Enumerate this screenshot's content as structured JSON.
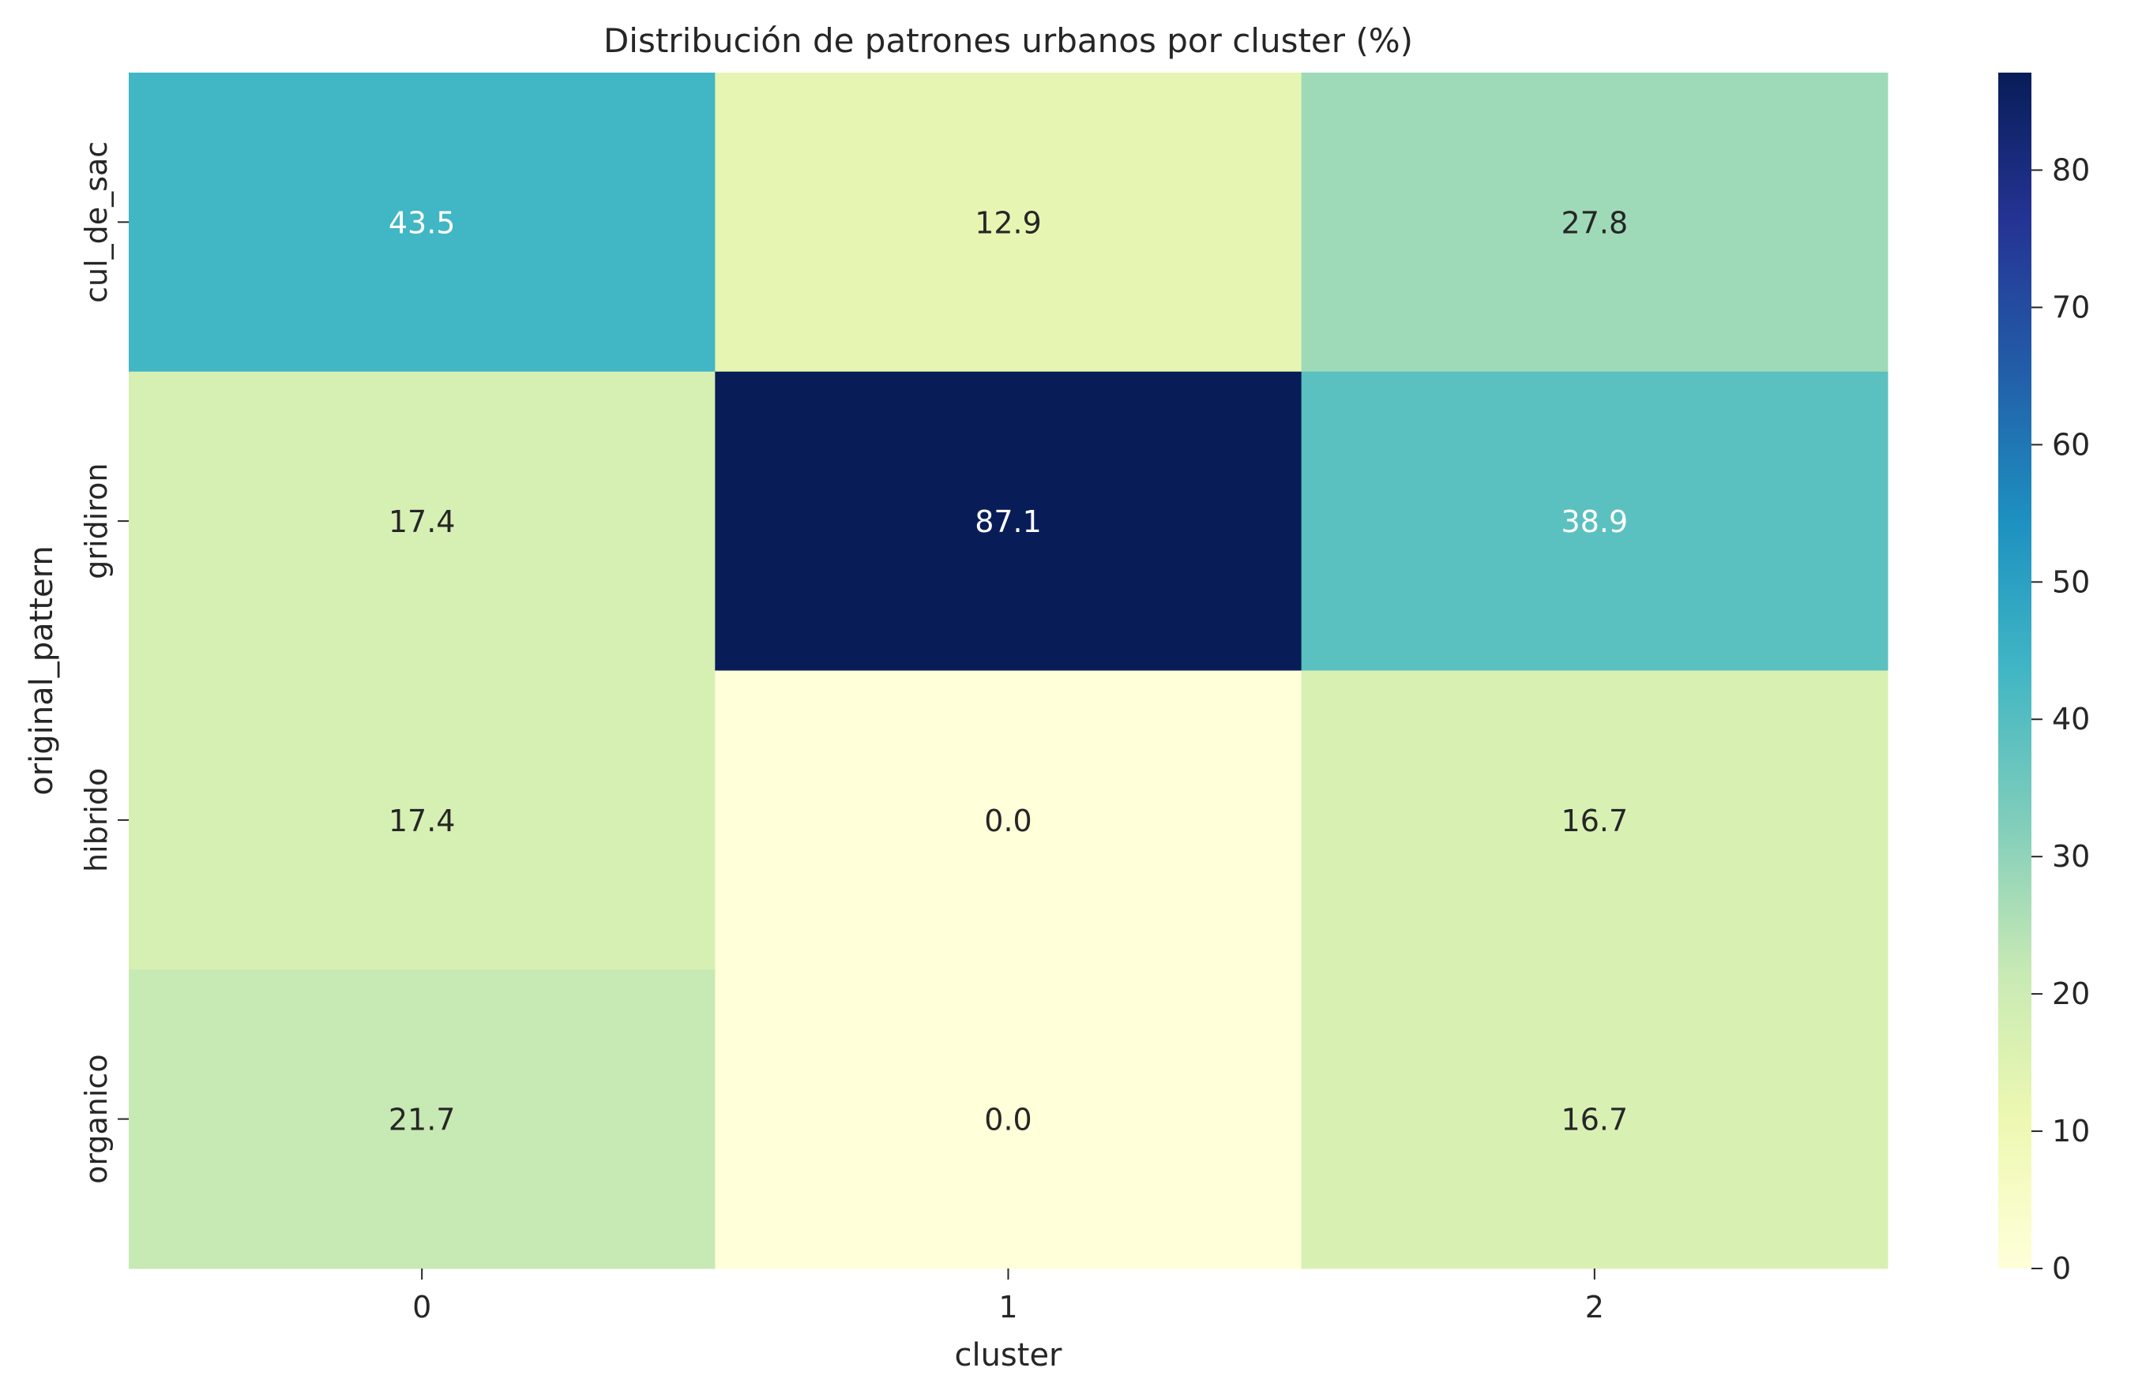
{
  "chart_data": {
    "type": "heatmap",
    "title": "Distribución de patrones urbanos por cluster (%)",
    "xlabel": "cluster",
    "ylabel": "original_pattern",
    "x_categories": [
      "0",
      "1",
      "2"
    ],
    "y_categories": [
      "cul_de_sac",
      "gridiron",
      "hibrido",
      "organico"
    ],
    "values": [
      [
        43.5,
        12.9,
        27.8
      ],
      [
        17.4,
        87.1,
        38.9
      ],
      [
        17.4,
        0.0,
        16.7
      ],
      [
        21.7,
        0.0,
        16.7
      ]
    ],
    "value_labels": [
      [
        "43.5",
        "12.9",
        "27.8"
      ],
      [
        "17.4",
        "87.1",
        "38.9"
      ],
      [
        "17.4",
        "0.0",
        "16.7"
      ],
      [
        "21.7",
        "0.0",
        "16.7"
      ]
    ],
    "colorscale": "YlGnBu",
    "color_range": [
      0,
      87.1
    ],
    "colorbar_ticks": [
      0,
      10,
      20,
      30,
      40,
      50,
      60,
      70,
      80
    ],
    "colorbar_tick_labels": [
      "0",
      "10",
      "20",
      "30",
      "40",
      "50",
      "60",
      "70",
      "80"
    ],
    "grid": false,
    "legend": "colorbar-right"
  }
}
